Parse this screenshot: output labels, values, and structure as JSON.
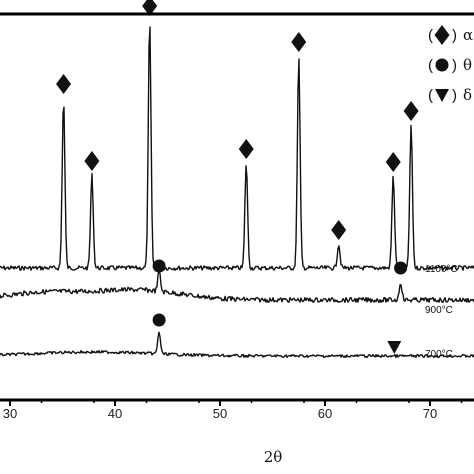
{
  "chart_data": {
    "type": "line",
    "xlabel": "2θ",
    "ylabel": "",
    "xlim": [
      28,
      74
    ],
    "xticks": [
      30,
      40,
      50,
      60,
      70
    ],
    "xtick_labels": [
      "30",
      "40",
      "50",
      "60",
      "70"
    ],
    "grid": false,
    "legend_position": "top-right",
    "legend": [
      {
        "marker": "diamond",
        "label": "α"
      },
      {
        "marker": "circle",
        "label": "θ"
      },
      {
        "marker": "triangle-down",
        "label": "δ"
      }
    ],
    "series": [
      {
        "name": "1100°C",
        "baseline": 268,
        "peaks": [
          {
            "x": 35.1,
            "height": 170,
            "marker": "diamond"
          },
          {
            "x": 37.8,
            "height": 93,
            "marker": "diamond"
          },
          {
            "x": 43.3,
            "height": 248,
            "marker": "diamond"
          },
          {
            "x": 52.5,
            "height": 105,
            "marker": "diamond"
          },
          {
            "x": 57.5,
            "height": 212,
            "marker": "diamond"
          },
          {
            "x": 61.3,
            "height": 24,
            "marker": "diamond"
          },
          {
            "x": 66.5,
            "height": 92,
            "marker": "diamond"
          },
          {
            "x": 68.2,
            "height": 143,
            "marker": "diamond"
          }
        ]
      },
      {
        "name": "900°C",
        "baseline": 300,
        "peaks": [
          {
            "x": 44.2,
            "height": 20,
            "marker": "circle"
          },
          {
            "x": 67.2,
            "height": 18,
            "marker": "circle"
          }
        ]
      },
      {
        "name": "700°C",
        "baseline": 356,
        "peaks": [
          {
            "x": 44.2,
            "height": 22,
            "marker": "circle"
          },
          {
            "x": 66.6,
            "height": 0,
            "marker": "triangle-down"
          }
        ]
      }
    ]
  }
}
